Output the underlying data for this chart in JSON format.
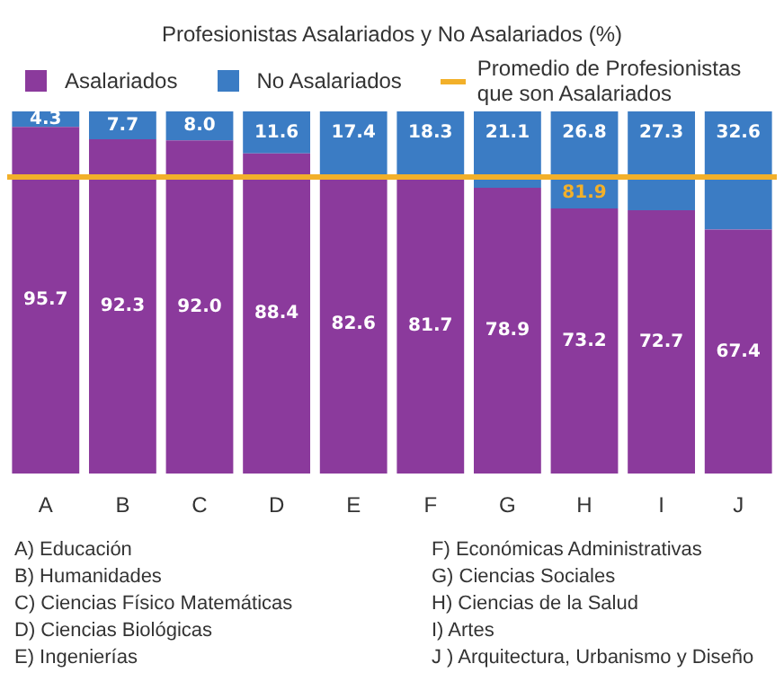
{
  "chart_data": {
    "type": "bar",
    "stacked": true,
    "title": "Profesionistas Asalariados y No Asalariados (%)",
    "categories": [
      "A",
      "B",
      "C",
      "D",
      "E",
      "F",
      "G",
      "H",
      "I",
      "J"
    ],
    "series": [
      {
        "name": "Asalariados",
        "color": "#8b3a9c",
        "values": [
          95.7,
          92.3,
          92.0,
          88.4,
          82.6,
          81.7,
          78.9,
          73.2,
          72.7,
          67.4
        ],
        "value_labels": [
          "95.7",
          "92.3",
          "92.0",
          "88.4",
          "82.6",
          "81.7",
          "78.9",
          "73.2",
          "72.7",
          "67.4"
        ]
      },
      {
        "name": "No Asalariados",
        "color": "#3b7cc4",
        "values": [
          4.3,
          7.7,
          8.0,
          11.6,
          17.4,
          18.3,
          21.1,
          26.8,
          27.3,
          32.6
        ],
        "value_labels": [
          "4.3",
          "7.7",
          "8.0",
          "11.6",
          "17.4",
          "18.3",
          "21.1",
          "26.8",
          "27.3",
          "32.6"
        ]
      }
    ],
    "ref_lines": [
      {
        "axis": "y",
        "value": 81.9,
        "label": "Promedio de Profesionistas que son Asalariados",
        "color": "#f2b02a"
      }
    ],
    "legend": "top",
    "grid": false,
    "tick_labels": "x",
    "annotations": [
      {
        "text": "81.9",
        "x": "H",
        "y": 81.9
      },
      "A) Educación",
      "B) Humanidades",
      "C) Ciencias Físico Matemáticas",
      "D) Ciencias Biológicas",
      "E) Ingenierías",
      "F) Económicas Administrativas",
      "G) Ciencias Sociales",
      "H) Ciencias de la Salud",
      "I) Artes",
      "J ) Arquitectura, Urbanismo y Diseño"
    ]
  }
}
